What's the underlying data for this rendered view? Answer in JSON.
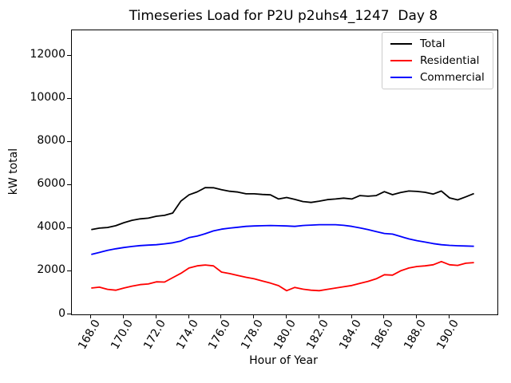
{
  "figure": {
    "title": "Timeseries Load for P2U p2uhs4_1247  Day 8",
    "xlabel": "Hour of Year",
    "ylabel": "kW total"
  },
  "chart_data": {
    "type": "line",
    "title": "Timeseries Load for P2U p2uhs4_1247  Day 8",
    "xlabel": "Hour of Year",
    "ylabel": "kW total",
    "grid": false,
    "legend_position": "upper right",
    "xlim": [
      166.81,
      192.94
    ],
    "ylim": [
      0,
      13170
    ],
    "xticks": {
      "values": [
        168,
        170,
        172,
        174,
        176,
        178,
        180,
        182,
        184,
        186,
        188,
        190
      ],
      "labels": [
        "168.0",
        "170.0",
        "172.0",
        "174.0",
        "176.0",
        "178.0",
        "180.0",
        "182.0",
        "184.0",
        "186.0",
        "188.0",
        "190.0"
      ],
      "rotation_deg": 60
    },
    "yticks": {
      "values": [
        0,
        2000,
        4000,
        6000,
        8000,
        10000,
        12000
      ],
      "labels": [
        "0",
        "2000",
        "4000",
        "6000",
        "8000",
        "10000",
        "12000"
      ]
    },
    "x": [
      168.0,
      168.5,
      169.0,
      169.5,
      170.0,
      170.5,
      171.0,
      171.5,
      172.0,
      172.5,
      173.0,
      173.5,
      174.0,
      174.5,
      175.0,
      175.5,
      176.0,
      176.5,
      177.0,
      177.5,
      178.0,
      178.5,
      179.0,
      179.5,
      180.0,
      180.5,
      181.0,
      181.5,
      182.0,
      182.5,
      183.0,
      183.5,
      184.0,
      184.5,
      185.0,
      185.5,
      186.0,
      186.5,
      187.0,
      187.5,
      188.0,
      188.5,
      189.0,
      189.5,
      190.0,
      190.5,
      191.0,
      191.5
    ],
    "series": [
      {
        "name": "Total",
        "color": "#000000",
        "values": [
          3930,
          4000,
          4030,
          4110,
          4250,
          4360,
          4430,
          4460,
          4550,
          4590,
          4700,
          5250,
          5540,
          5680,
          5880,
          5870,
          5780,
          5710,
          5670,
          5590,
          5590,
          5560,
          5540,
          5350,
          5420,
          5330,
          5230,
          5190,
          5250,
          5320,
          5350,
          5390,
          5350,
          5510,
          5480,
          5510,
          5690,
          5550,
          5650,
          5720,
          5700,
          5660,
          5580,
          5720,
          5400,
          5310,
          5450,
          5600
        ]
      },
      {
        "name": "Residential",
        "color": "#ff0000",
        "values": [
          1220,
          1260,
          1160,
          1120,
          1220,
          1310,
          1380,
          1410,
          1510,
          1500,
          1700,
          1900,
          2150,
          2250,
          2290,
          2250,
          1960,
          1890,
          1800,
          1720,
          1650,
          1550,
          1450,
          1330,
          1100,
          1250,
          1170,
          1120,
          1100,
          1160,
          1220,
          1280,
          1340,
          1440,
          1530,
          1650,
          1840,
          1820,
          2020,
          2150,
          2220,
          2250,
          2300,
          2450,
          2300,
          2270,
          2370,
          2400
        ]
      },
      {
        "name": "Commercial",
        "color": "#0000ff",
        "values": [
          2780,
          2870,
          2970,
          3040,
          3100,
          3150,
          3190,
          3210,
          3230,
          3270,
          3320,
          3400,
          3560,
          3630,
          3740,
          3870,
          3950,
          4000,
          4040,
          4080,
          4100,
          4110,
          4120,
          4110,
          4100,
          4080,
          4120,
          4140,
          4160,
          4160,
          4160,
          4130,
          4080,
          4010,
          3930,
          3840,
          3750,
          3720,
          3610,
          3500,
          3420,
          3350,
          3280,
          3230,
          3200,
          3180,
          3170,
          3160
        ]
      }
    ]
  }
}
